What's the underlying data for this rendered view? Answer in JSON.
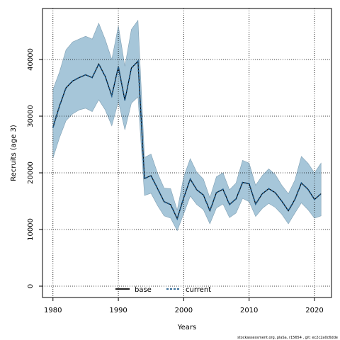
{
  "chart_data": {
    "type": "area",
    "xlabel": "Years",
    "ylabel": "Recruits (age 3)",
    "xlim": [
      1978.4,
      1981.6
    ],
    "ylim": [
      -2000,
      49000
    ],
    "x_ticks": [
      1980,
      1990,
      2000,
      2010,
      2020
    ],
    "y_ticks": [
      0,
      10000,
      20000,
      30000,
      40000
    ],
    "grid": true,
    "legend_position": "bottom-center",
    "x": [
      1980,
      1981,
      1982,
      1983,
      1984,
      1985,
      1986,
      1987,
      1988,
      1989,
      1990,
      1991,
      1992,
      1993,
      1994,
      1995,
      1996,
      1997,
      1998,
      1999,
      2000,
      2001,
      2002,
      2003,
      2004,
      2005,
      2006,
      2007,
      2008,
      2009,
      2010,
      2011,
      2012,
      2013,
      2014,
      2015,
      2016,
      2017,
      2018,
      2019,
      2020,
      2021
    ],
    "series": [
      {
        "name": "base",
        "style": "solid",
        "color": "#000000",
        "values": [
          28000,
          31800,
          35000,
          36200,
          36800,
          37300,
          36800,
          39200,
          37000,
          33600,
          38700,
          32800,
          38500,
          39700,
          19000,
          19500,
          17200,
          14900,
          14400,
          11900,
          15600,
          18900,
          17000,
          16100,
          13300,
          16500,
          17100,
          14400,
          15400,
          18300,
          18100,
          14500,
          16300,
          17200,
          16500,
          15000,
          13300,
          15300,
          18200,
          17100,
          15300,
          16300
        ]
      },
      {
        "name": "current",
        "style": "dashed",
        "color": "#1f5a8a",
        "values": [
          28000,
          31800,
          35000,
          36200,
          36800,
          37300,
          36800,
          39200,
          37000,
          33600,
          38700,
          32800,
          38500,
          39700,
          19000,
          19500,
          17200,
          14900,
          14400,
          11900,
          15600,
          18900,
          17000,
          16100,
          13300,
          16500,
          17100,
          14400,
          15400,
          18300,
          18100,
          14500,
          16300,
          17200,
          16500,
          15000,
          13300,
          15300,
          18200,
          17100,
          15300,
          16300
        ]
      }
    ],
    "band": {
      "color": "#a6c6d9",
      "upper": [
        34700,
        37800,
        41700,
        43100,
        43600,
        44100,
        43600,
        46400,
        43500,
        40000,
        45900,
        38800,
        45300,
        46900,
        22700,
        23300,
        19900,
        17300,
        17200,
        13400,
        19300,
        22500,
        20100,
        18900,
        15600,
        19300,
        20000,
        17000,
        18200,
        22200,
        21700,
        17800,
        19500,
        20700,
        19700,
        17800,
        16300,
        18700,
        22900,
        21700,
        20000,
        21700
      ],
      "lower": [
        22600,
        26200,
        29200,
        30400,
        31100,
        31400,
        30800,
        32900,
        31100,
        28300,
        32600,
        27600,
        32300,
        33400,
        16000,
        16400,
        14200,
        12400,
        12000,
        9800,
        12800,
        15900,
        14400,
        13500,
        11000,
        13800,
        14500,
        12100,
        12900,
        15500,
        14900,
        12300,
        13700,
        14600,
        13900,
        12700,
        11000,
        12900,
        14700,
        13500,
        12000,
        12400
      ]
    }
  },
  "footnote": "stockassessment.org, plaSa, r15654 , git: ec2c2a0c6dde"
}
